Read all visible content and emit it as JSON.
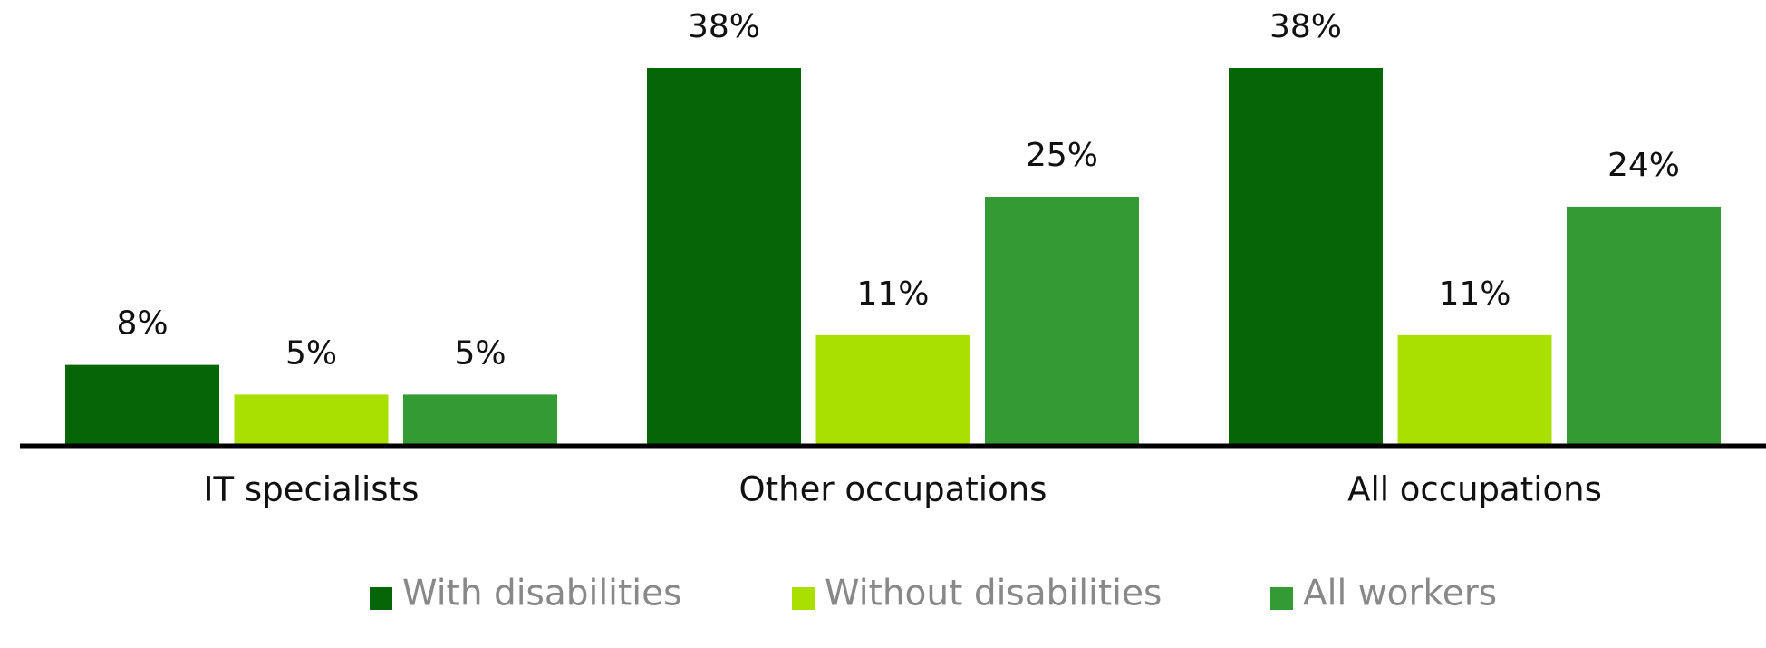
{
  "chart_data": {
    "type": "bar",
    "categories": [
      "IT specialists",
      "Other occupations",
      "All occupations"
    ],
    "series": [
      {
        "name": "With disabilities",
        "color": "#046604",
        "values": [
          8,
          38,
          38
        ],
        "value_labels": [
          "8%",
          "38%",
          "38%"
        ]
      },
      {
        "name": "Without disabilities",
        "color": "#a9e002",
        "values": [
          5,
          11,
          11
        ],
        "value_labels": [
          "5%",
          "11%",
          "11%"
        ]
      },
      {
        "name": "All workers",
        "color": "#349a34",
        "values": [
          5,
          25,
          24
        ],
        "value_labels": [
          "5%",
          "25%",
          "24%"
        ]
      }
    ],
    "legend": "bottom"
  }
}
